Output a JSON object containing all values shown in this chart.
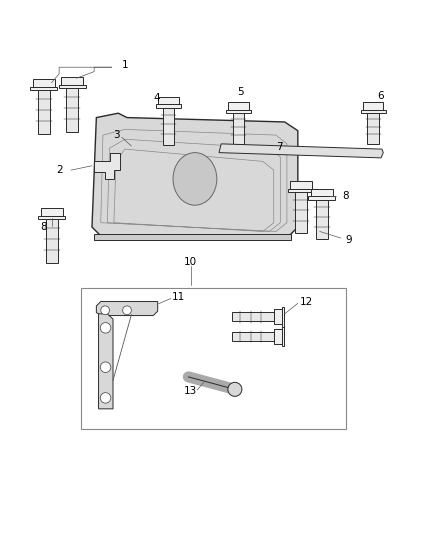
{
  "bg_color": "#ffffff",
  "line_color": "#2a2a2a",
  "label_color": "#000000",
  "fig_width": 4.38,
  "fig_height": 5.33,
  "dpi": 100,
  "font_size_labels": 7.5
}
